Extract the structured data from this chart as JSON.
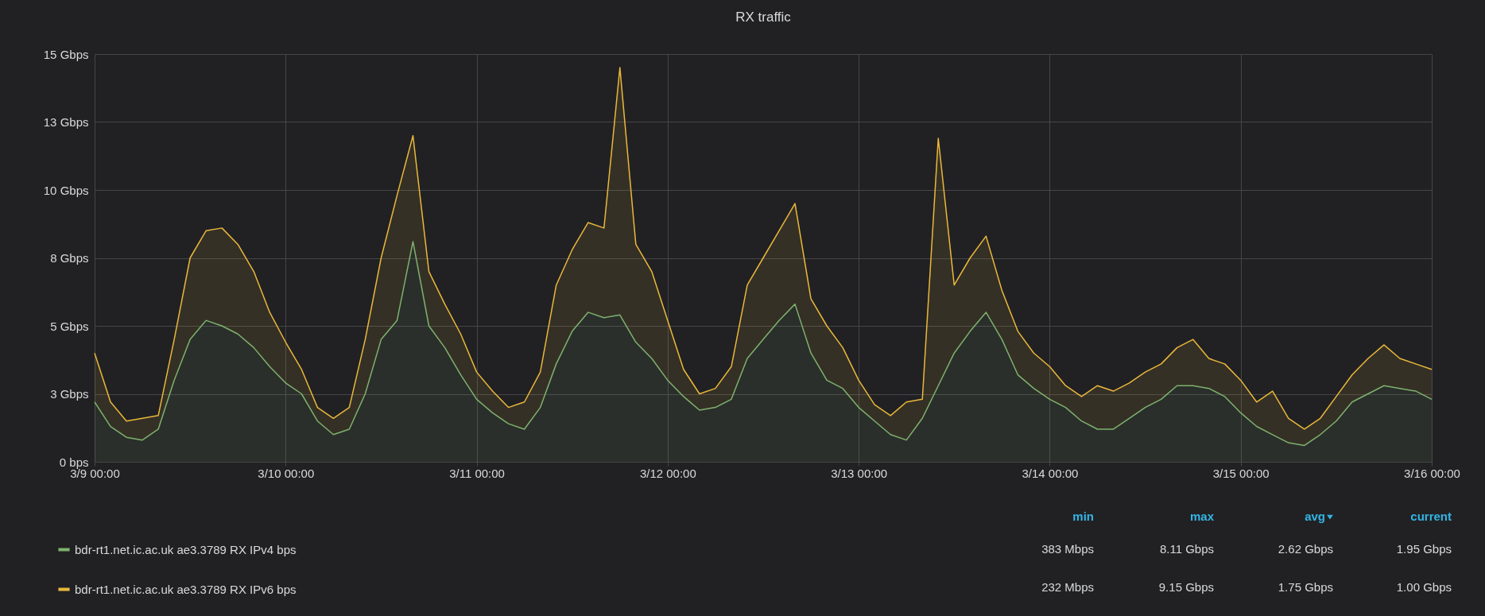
{
  "chart_data": {
    "type": "area",
    "title": "RX traffic",
    "stacked": true,
    "grid": true,
    "legend": "bottom",
    "x": [
      "--03-09T00:00",
      "--03-09T02:00",
      "--03-09T04:00",
      "--03-09T06:00",
      "--03-09T08:00",
      "--03-09T10:00",
      "--03-09T12:00",
      "--03-09T14:00",
      "--03-09T16:00",
      "--03-09T18:00",
      "--03-09T20:00",
      "--03-09T22:00",
      "--03-10T00:00",
      "--03-10T02:00",
      "--03-10T04:00",
      "--03-10T06:00",
      "--03-10T08:00",
      "--03-10T10:00",
      "--03-10T12:00",
      "--03-10T14:00",
      "--03-10T16:00",
      "--03-10T18:00",
      "--03-10T20:00",
      "--03-10T22:00",
      "--03-11T00:00",
      "--03-11T02:00",
      "--03-11T04:00",
      "--03-11T06:00",
      "--03-11T08:00",
      "--03-11T10:00",
      "--03-11T12:00",
      "--03-11T14:00",
      "--03-11T16:00",
      "--03-11T18:00",
      "--03-11T20:00",
      "--03-11T22:00",
      "--03-12T00:00",
      "--03-12T02:00",
      "--03-12T04:00",
      "--03-12T06:00",
      "--03-12T08:00",
      "--03-12T10:00",
      "--03-12T12:00",
      "--03-12T14:00",
      "--03-12T16:00",
      "--03-12T18:00",
      "--03-12T20:00",
      "--03-12T22:00",
      "--03-13T00:00",
      "--03-13T02:00",
      "--03-13T04:00",
      "--03-13T06:00",
      "--03-13T08:00",
      "--03-13T10:00",
      "--03-13T12:00",
      "--03-13T14:00",
      "--03-13T16:00",
      "--03-13T18:00",
      "--03-13T20:00",
      "--03-13T22:00",
      "--03-14T00:00",
      "--03-14T02:00",
      "--03-14T04:00",
      "--03-14T06:00",
      "--03-14T08:00",
      "--03-14T10:00",
      "--03-14T12:00",
      "--03-14T14:00",
      "--03-14T16:00",
      "--03-14T18:00",
      "--03-14T20:00",
      "--03-14T22:00",
      "--03-15T00:00",
      "--03-15T02:00",
      "--03-15T04:00",
      "--03-15T06:00",
      "--03-15T08:00",
      "--03-15T10:00",
      "--03-15T12:00",
      "--03-15T14:00",
      "--03-15T16:00",
      "--03-15T18:00",
      "--03-15T20:00",
      "--03-15T22:00",
      "--03-16T00:00"
    ],
    "series": [
      {
        "name": "bdr-rt1.net.ic.ac.uk ae3.3789 RX IPv4 bps",
        "color": "#7eb26d",
        "values": [
          2.2,
          1.3,
          0.9,
          0.8,
          1.2,
          3.0,
          4.5,
          5.2,
          5.0,
          4.7,
          4.2,
          3.5,
          2.9,
          2.5,
          1.5,
          1.0,
          1.2,
          2.5,
          4.5,
          5.2,
          8.1,
          5.0,
          4.2,
          3.2,
          2.3,
          1.8,
          1.4,
          1.2,
          2.0,
          3.6,
          4.8,
          5.5,
          5.3,
          5.4,
          4.4,
          3.8,
          3.0,
          2.4,
          1.9,
          2.0,
          2.3,
          3.8,
          4.5,
          5.2,
          5.8,
          4.0,
          3.0,
          2.7,
          2.0,
          1.5,
          1.0,
          0.8,
          1.6,
          2.8,
          4.0,
          4.8,
          5.5,
          4.5,
          3.2,
          2.7,
          2.3,
          2.0,
          1.5,
          1.2,
          1.2,
          1.6,
          2.0,
          2.3,
          2.8,
          2.8,
          2.7,
          2.4,
          1.8,
          1.3,
          1.0,
          0.7,
          0.6,
          1.0,
          1.5,
          2.2,
          2.5,
          2.8,
          2.7,
          2.6,
          2.3
        ]
      },
      {
        "name": "bdr-rt1.net.ic.ac.uk ae3.3789 RX IPv6 bps",
        "color": "#eab839",
        "values": [
          1.8,
          0.9,
          0.6,
          0.8,
          0.5,
          1.5,
          3.0,
          3.3,
          3.6,
          3.3,
          2.8,
          2.0,
          1.5,
          0.9,
          0.5,
          0.6,
          0.8,
          2.0,
          3.0,
          4.6,
          3.9,
          2.0,
          1.6,
          1.5,
          1.0,
          0.8,
          0.6,
          1.0,
          1.3,
          2.9,
          3.0,
          3.3,
          3.3,
          9.1,
          3.6,
          3.2,
          2.2,
          1.0,
          0.6,
          0.7,
          1.2,
          2.7,
          3.0,
          3.3,
          3.7,
          2.0,
          2.0,
          1.5,
          1.0,
          0.6,
          0.7,
          1.4,
          0.7,
          9.1,
          2.5,
          2.7,
          2.8,
          1.8,
          1.6,
          1.3,
          1.2,
          0.8,
          0.9,
          1.6,
          1.4,
          1.3,
          1.3,
          1.3,
          1.4,
          1.7,
          1.1,
          1.2,
          1.2,
          0.9,
          1.6,
          0.9,
          0.6,
          0.6,
          0.9,
          1.0,
          1.3,
          1.5,
          1.1,
          1.0,
          1.1
        ]
      }
    ],
    "ylim": [
      0,
      15
    ],
    "yticks": [
      {
        "value": 0,
        "label": "0 bps"
      },
      {
        "value": 2.5,
        "label": "3 Gbps"
      },
      {
        "value": 5,
        "label": "5 Gbps"
      },
      {
        "value": 7.5,
        "label": "8 Gbps"
      },
      {
        "value": 10,
        "label": "10 Gbps"
      },
      {
        "value": 12.5,
        "label": "13 Gbps"
      },
      {
        "value": 15,
        "label": "15 Gbps"
      }
    ],
    "xlim": [
      "--03-09T00:00",
      "--03-16T00:00"
    ],
    "xticks": [
      {
        "value": "--03-09T00:00",
        "label": "3/9 00:00"
      },
      {
        "value": "--03-10T00:00",
        "label": "3/10 00:00"
      },
      {
        "value": "--03-11T00:00",
        "label": "3/11 00:00"
      },
      {
        "value": "--03-12T00:00",
        "label": "3/12 00:00"
      },
      {
        "value": "--03-13T00:00",
        "label": "3/13 00:00"
      },
      {
        "value": "--03-14T00:00",
        "label": "3/14 00:00"
      },
      {
        "value": "--03-15T00:00",
        "label": "3/15 00:00"
      },
      {
        "value": "--03-16T00:00",
        "label": "3/16 00:00"
      }
    ],
    "annotations": [
      "min",
      "max",
      "avg",
      "current",
      "383 Mbps",
      "8.11 Gbps",
      "2.62 Gbps",
      "1.95 Gbps",
      "232 Mbps",
      "9.15 Gbps",
      "1.75 Gbps",
      "1.00 Gbps"
    ]
  }
}
